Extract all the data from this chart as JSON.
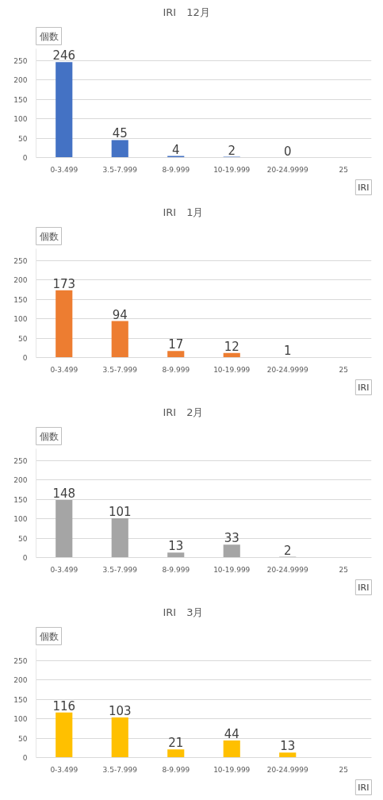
{
  "chart_data": [
    {
      "type": "bar",
      "title": "IRI　12月",
      "ylabel": "個数",
      "xlabel": "IRI",
      "categories": [
        "0-3.499",
        "3.5-7.999",
        "8-9.999",
        "10-19.999",
        "20-24.9999",
        "25"
      ],
      "values": [
        246,
        45,
        4,
        2,
        0,
        null
      ],
      "color": "#4472c4",
      "ylim": [
        0,
        280
      ],
      "yticks": [
        0,
        50,
        100,
        150,
        200,
        250
      ],
      "grid": "y",
      "data_labels": true
    },
    {
      "type": "bar",
      "title": "IRI　1月",
      "ylabel": "個数",
      "xlabel": "IRI",
      "categories": [
        "0-3.499",
        "3.5-7.999",
        "8-9.999",
        "10-19.999",
        "20-24.9999",
        "25"
      ],
      "values": [
        173,
        94,
        17,
        12,
        1,
        null
      ],
      "color": "#ed7d31",
      "ylim": [
        0,
        280
      ],
      "yticks": [
        0,
        50,
        100,
        150,
        200,
        250
      ],
      "grid": "y",
      "data_labels": true
    },
    {
      "type": "bar",
      "title": "IRI　2月",
      "ylabel": "個数",
      "xlabel": "IRI",
      "categories": [
        "0-3.499",
        "3.5-7.999",
        "8-9.999",
        "10-19.999",
        "20-24.9999",
        "25"
      ],
      "values": [
        148,
        101,
        13,
        33,
        2,
        null
      ],
      "color": "#a5a5a5",
      "ylim": [
        0,
        280
      ],
      "yticks": [
        0,
        50,
        100,
        150,
        200,
        250
      ],
      "grid": "y",
      "data_labels": true
    },
    {
      "type": "bar",
      "title": "IRI　3月",
      "ylabel": "個数",
      "xlabel": "IRI",
      "categories": [
        "0-3.499",
        "3.5-7.999",
        "8-9.999",
        "10-19.999",
        "20-24.9999",
        "25"
      ],
      "values": [
        116,
        103,
        21,
        44,
        13,
        null
      ],
      "color": "#ffc000",
      "ylim": [
        0,
        280
      ],
      "yticks": [
        0,
        50,
        100,
        150,
        200,
        250
      ],
      "grid": "y",
      "data_labels": true
    }
  ]
}
